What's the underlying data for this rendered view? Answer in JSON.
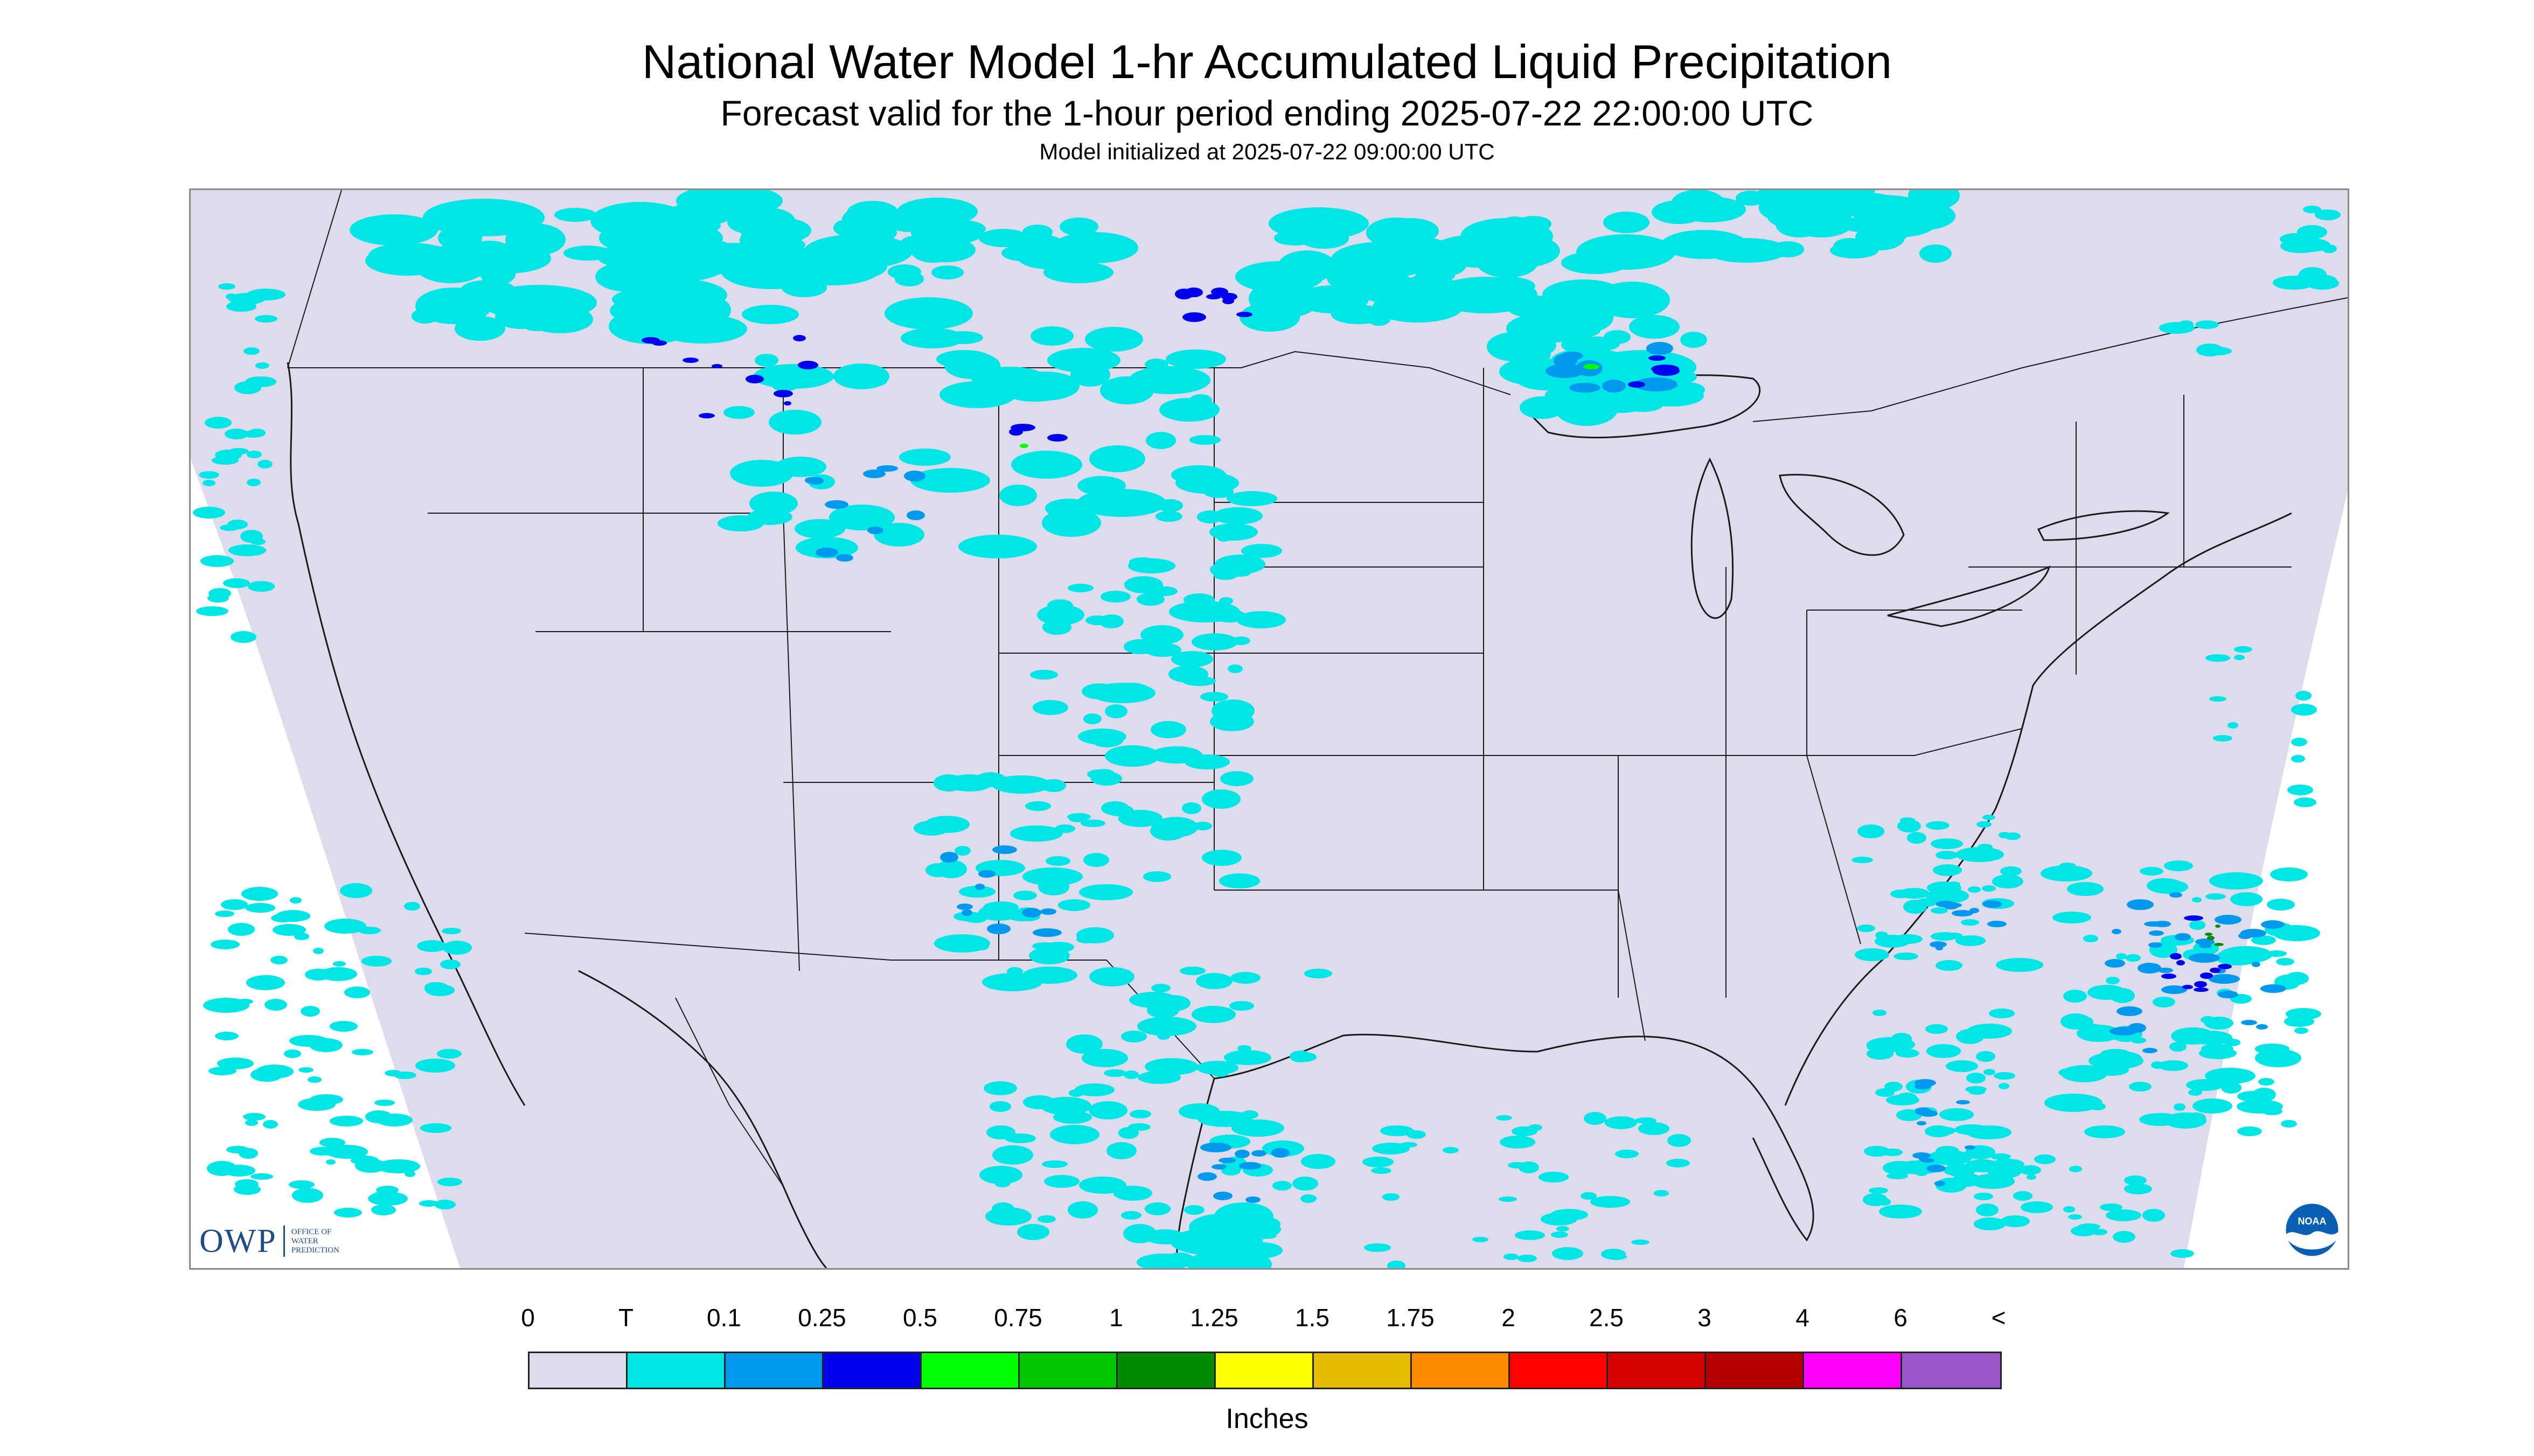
{
  "header": {
    "title": "National Water Model 1-hr Accumulated Liquid Precipitation",
    "subtitle": "Forecast valid for the 1-hour period ending 2025-07-22 22:00:00 UTC",
    "init": "Model initialized at 2025-07-22 09:00:00 UTC"
  },
  "map": {
    "region": "Contiguous United States with parts of Canada and Mexico",
    "background_color": "#dcdcec",
    "outside_domain_color": "#ffffff",
    "boundary_color": "#1a1a1a",
    "precip_areas": [
      {
        "area": "northern Rockies / southern Canada",
        "level": "T-0.5"
      },
      {
        "area": "Montana / Wyoming",
        "level": "T-0.75"
      },
      {
        "area": "Colorado / New Mexico",
        "level": "T-0.5"
      },
      {
        "area": "northern Mexico",
        "level": "T-0.5"
      },
      {
        "area": "Lake Superior region",
        "level": "T-1"
      },
      {
        "area": "Georgia / Carolinas coast",
        "level": "T-0.5"
      },
      {
        "area": "Florida peninsula",
        "level": "T-0.75"
      },
      {
        "area": "western Atlantic offshore",
        "level": "T-1.25"
      },
      {
        "area": "Gulf of Mexico",
        "level": "T-0.25"
      },
      {
        "area": "Pacific off Baja California",
        "level": "T"
      }
    ]
  },
  "logos": {
    "owp_mark": "OWP",
    "owp_text": [
      "OFFICE OF",
      "WATER",
      "PREDICTION"
    ],
    "noaa_text": "NOAA"
  },
  "legend": {
    "labels": [
      "0",
      "T",
      "0.1",
      "0.25",
      "0.5",
      "0.75",
      "1",
      "1.25",
      "1.5",
      "1.75",
      "2",
      "2.5",
      "3",
      "4",
      "6",
      "<"
    ],
    "colors": [
      "#dcdcec",
      "#00e5e5",
      "#0099ee",
      "#0000ee",
      "#00ff00",
      "#00c800",
      "#008c00",
      "#ffff00",
      "#e5bc00",
      "#ff8c00",
      "#ff0000",
      "#d50000",
      "#b50000",
      "#ff00ff",
      "#9955c9"
    ],
    "units": "Inches"
  }
}
